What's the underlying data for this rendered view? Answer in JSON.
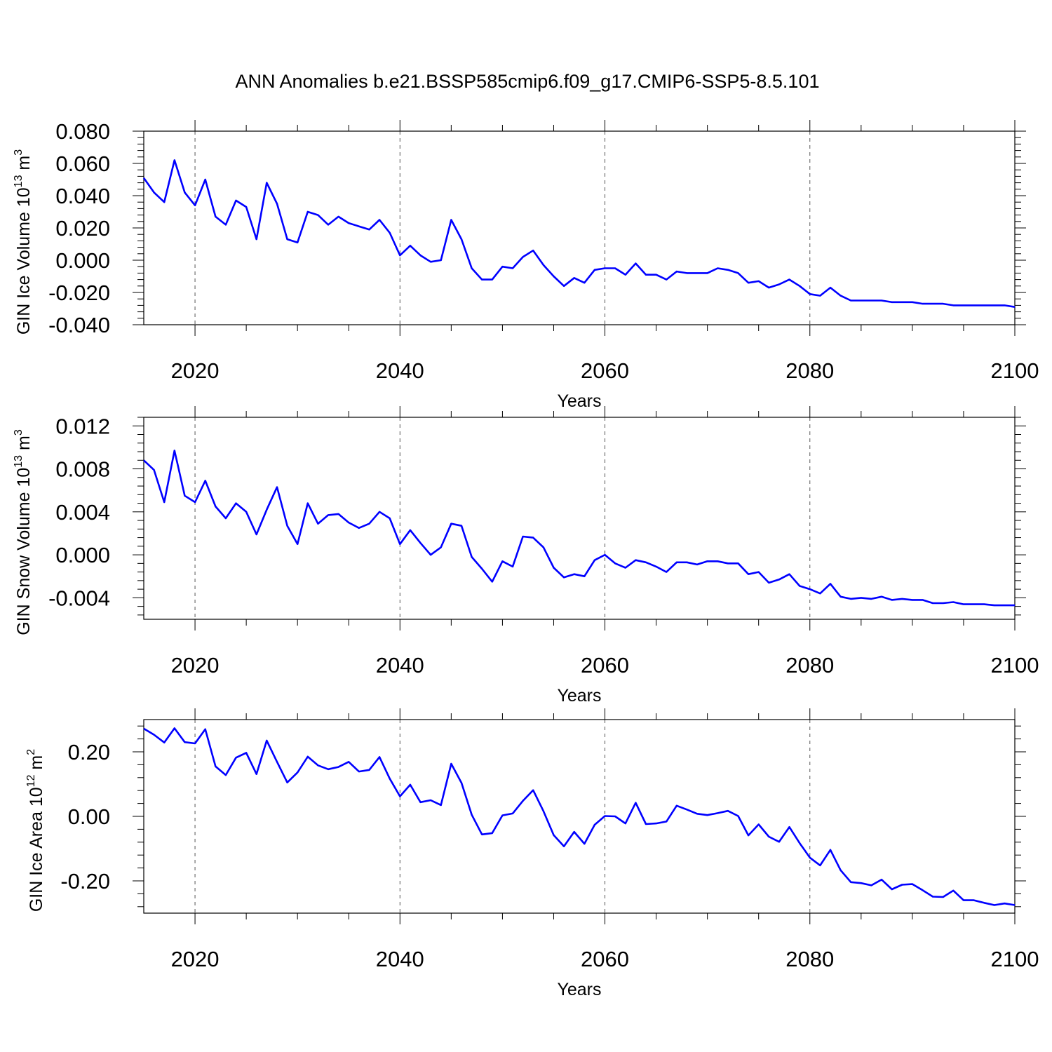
{
  "colors": {
    "series": "#0000ff",
    "axes": "#000000",
    "grid": "#555555"
  },
  "chart_data": [
    {
      "type": "line",
      "title": "ANN Anomalies b.e21.BSSP585cmip6.f09_g17.CMIP6-SSP5-8.5.101",
      "xlabel": "Years",
      "ylabel": "GIN Ice Volume 10",
      "ylabel_exp": "13",
      "ylabel_unit": "m",
      "ylabel_unit_exp": "3",
      "xlim": [
        2015,
        2100
      ],
      "ylim": [
        -0.04,
        0.08
      ],
      "yticks": [
        -0.04,
        -0.02,
        0.0,
        0.02,
        0.04,
        0.06,
        0.08
      ],
      "ytick_labels": [
        "-0.040",
        "-0.020",
        "0.000",
        "0.020",
        "0.040",
        "0.060",
        "0.080"
      ],
      "xticks": [
        2020,
        2040,
        2060,
        2080,
        2100
      ],
      "xtick_labels": [
        "2020",
        "2040",
        "2060",
        "2080",
        "2100"
      ],
      "grid": "vertical dashed at major x ticks",
      "x_start": 2015,
      "values": [
        0.051,
        0.042,
        0.036,
        0.062,
        0.042,
        0.034,
        0.05,
        0.027,
        0.022,
        0.037,
        0.033,
        0.013,
        0.048,
        0.035,
        0.013,
        0.011,
        0.03,
        0.028,
        0.022,
        0.027,
        0.023,
        0.021,
        0.019,
        0.025,
        0.017,
        0.003,
        0.009,
        0.003,
        -0.001,
        0.0,
        0.025,
        0.013,
        -0.005,
        -0.012,
        -0.012,
        -0.004,
        -0.005,
        0.002,
        0.006,
        -0.003,
        -0.01,
        -0.016,
        -0.011,
        -0.014,
        -0.006,
        -0.005,
        -0.005,
        -0.009,
        -0.002,
        -0.009,
        -0.009,
        -0.012,
        -0.007,
        -0.008,
        -0.008,
        -0.008,
        -0.005,
        -0.006,
        -0.008,
        -0.014,
        -0.013,
        -0.017,
        -0.015,
        -0.012,
        -0.016,
        -0.021,
        -0.022,
        -0.017,
        -0.022,
        -0.025,
        -0.025,
        -0.025,
        -0.025,
        -0.026,
        -0.026,
        -0.026,
        -0.027,
        -0.027,
        -0.027,
        -0.028,
        -0.028,
        -0.028,
        -0.028,
        -0.028,
        -0.028,
        -0.029
      ]
    },
    {
      "type": "line",
      "xlabel": "Years",
      "ylabel": "GIN Snow Volume 10",
      "ylabel_exp": "13",
      "ylabel_unit": "m",
      "ylabel_unit_exp": "3",
      "xlim": [
        2015,
        2100
      ],
      "ylim": [
        -0.006,
        0.0128
      ],
      "yticks": [
        -0.004,
        0.0,
        0.004,
        0.008,
        0.012
      ],
      "ytick_labels": [
        "-0.004",
        "0.000",
        "0.004",
        "0.008",
        "0.012"
      ],
      "xticks": [
        2020,
        2040,
        2060,
        2080,
        2100
      ],
      "xtick_labels": [
        "2020",
        "2040",
        "2060",
        "2080",
        "2100"
      ],
      "grid": "vertical dashed at major x ticks",
      "x_start": 2015,
      "values": [
        0.0088,
        0.0079,
        0.0049,
        0.0097,
        0.0055,
        0.0049,
        0.0069,
        0.0045,
        0.0034,
        0.0048,
        0.004,
        0.0019,
        0.0042,
        0.0063,
        0.0027,
        0.001,
        0.0048,
        0.0029,
        0.0037,
        0.0038,
        0.003,
        0.0025,
        0.0029,
        0.004,
        0.0034,
        0.001,
        0.0023,
        0.0011,
        0.0,
        0.0007,
        0.0029,
        0.0027,
        -0.0002,
        -0.0013,
        -0.0025,
        -0.0006,
        -0.0011,
        0.0017,
        0.0016,
        0.0007,
        -0.0012,
        -0.0021,
        -0.0018,
        -0.002,
        -0.0005,
        0.0,
        -0.0008,
        -0.0012,
        -0.0005,
        -0.0007,
        -0.0011,
        -0.0016,
        -0.0007,
        -0.0007,
        -0.0009,
        -0.0006,
        -0.0006,
        -0.0008,
        -0.0008,
        -0.0018,
        -0.0016,
        -0.0026,
        -0.0023,
        -0.0018,
        -0.0029,
        -0.0032,
        -0.0036,
        -0.0027,
        -0.0039,
        -0.0041,
        -0.004,
        -0.0041,
        -0.0039,
        -0.0042,
        -0.0041,
        -0.0042,
        -0.0042,
        -0.0045,
        -0.0045,
        -0.0044,
        -0.0046,
        -0.0046,
        -0.0046,
        -0.0047,
        -0.0047,
        -0.0047
      ]
    },
    {
      "type": "line",
      "xlabel": "Years",
      "ylabel": "GIN Ice Area 10",
      "ylabel_exp": "12",
      "ylabel_unit": "m",
      "ylabel_unit_exp": "2",
      "xlim": [
        2015,
        2100
      ],
      "ylim": [
        -0.3,
        0.3
      ],
      "yticks": [
        -0.2,
        0.0,
        0.2
      ],
      "ytick_labels": [
        "-0.20",
        "0.00",
        "0.20"
      ],
      "xticks": [
        2020,
        2040,
        2060,
        2080,
        2100
      ],
      "xtick_labels": [
        "2020",
        "2040",
        "2060",
        "2080",
        "2100"
      ],
      "grid": "vertical dashed at major x ticks",
      "x_start": 2015,
      "values": [
        0.272,
        0.253,
        0.229,
        0.273,
        0.23,
        0.226,
        0.27,
        0.155,
        0.128,
        0.182,
        0.197,
        0.131,
        0.235,
        0.169,
        0.105,
        0.136,
        0.185,
        0.158,
        0.146,
        0.153,
        0.169,
        0.139,
        0.144,
        0.184,
        0.117,
        0.062,
        0.098,
        0.044,
        0.05,
        0.035,
        0.163,
        0.104,
        0.005,
        -0.056,
        -0.052,
        0.003,
        0.009,
        0.048,
        0.081,
        0.016,
        -0.058,
        -0.093,
        -0.048,
        -0.085,
        -0.026,
        0.001,
        0.0,
        -0.022,
        0.042,
        -0.024,
        -0.022,
        -0.016,
        0.033,
        0.021,
        0.008,
        0.004,
        0.01,
        0.017,
        0.001,
        -0.059,
        -0.025,
        -0.063,
        -0.079,
        -0.033,
        -0.083,
        -0.128,
        -0.152,
        -0.104,
        -0.167,
        -0.204,
        -0.207,
        -0.214,
        -0.196,
        -0.226,
        -0.212,
        -0.21,
        -0.229,
        -0.249,
        -0.25,
        -0.23,
        -0.26,
        -0.26,
        -0.268,
        -0.275,
        -0.27,
        -0.275
      ]
    }
  ]
}
